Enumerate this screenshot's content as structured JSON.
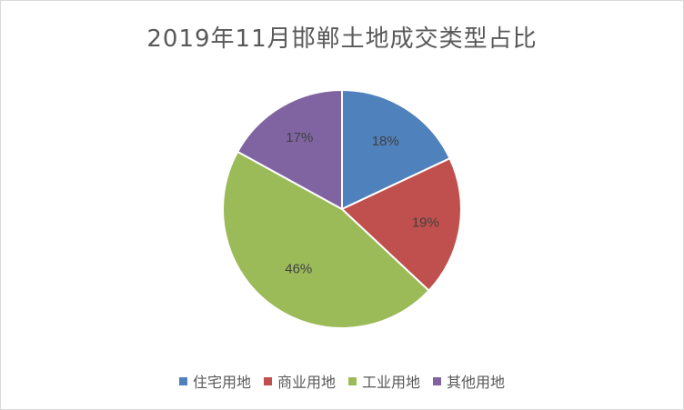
{
  "chart_data": {
    "type": "pie",
    "title": "2019年11月邯郸土地成交类型占比",
    "categories": [
      "住宅用地",
      "商业用地",
      "工业用地",
      "其他用地"
    ],
    "values": [
      18,
      19,
      46,
      17
    ],
    "labels": [
      "18%",
      "19%",
      "46%",
      "17%"
    ],
    "colors": [
      "#4f81bd",
      "#c0504d",
      "#9bbb59",
      "#8064a2"
    ],
    "legend_position": "bottom",
    "start_angle": "12 o'clock",
    "direction": "clockwise"
  }
}
